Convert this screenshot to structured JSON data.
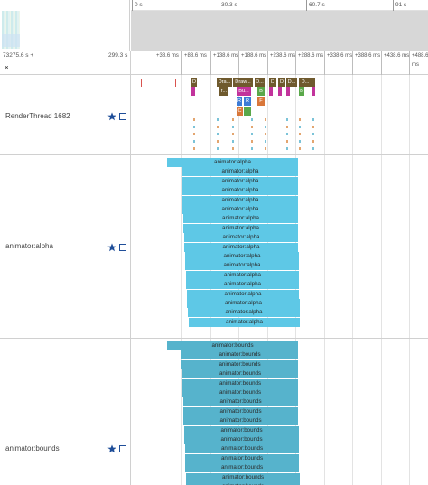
{
  "overview": {
    "ticks": [
      "0 s",
      "30.3 s",
      "60.7 s",
      "91 s"
    ]
  },
  "ruler": {
    "offset": "73275.6 s +",
    "span": "299.3 s",
    "ticks": [
      "+38.6 ms",
      "+88.6 ms",
      "+138.6 ms",
      "+188.6 ms",
      "+238.6 ms",
      "+288.6 ms",
      "+338.6 ms",
      "+388.6 ms",
      "+438.6 ms",
      "+488.6 ms"
    ]
  },
  "tracks": {
    "render": {
      "name": "RenderThread 1682",
      "slices_top": [
        "D",
        "Dra...",
        "Draw...",
        "D...",
        "D",
        "D",
        "D...",
        "D..."
      ],
      "slices_mid": [
        "f...",
        "Bu...",
        "B",
        "B"
      ],
      "slices_low": [
        "R",
        "R"
      ],
      "slices_c": [
        "C",
        "F"
      ]
    },
    "alpha": {
      "name": "animator:alpha",
      "slices": [
        "animator:alpha",
        "animator:alpha",
        "animator:alpha",
        "animator:alpha",
        "animator:alpha",
        "animator:alpha",
        "animator:alpha",
        "animator:alpha",
        "animator:alpha",
        "animator:alpha",
        "animator:alpha",
        "animator:alpha",
        "animator:alpha",
        "animator:alpha",
        "animator:alpha",
        "animator:alpha",
        "animator:alpha",
        "animator:alpha"
      ]
    },
    "bounds": {
      "name": "animator:bounds",
      "slices": [
        "animator:bounds",
        "animator:bounds",
        "animator:bounds",
        "animator:bounds",
        "animator:bounds",
        "animator:bounds",
        "animator:bounds",
        "animator:bounds",
        "animator:bounds",
        "animator:bounds",
        "animator:bounds",
        "animator:bounds",
        "animator:bounds",
        "animator:bounds",
        "animator:bounds",
        "animator:bounds"
      ]
    }
  },
  "colors": {
    "alpha": "#5ec8e6",
    "bounds": "#56b3cc",
    "render_brown": "#6f5a2e",
    "render_magenta": "#c2339c",
    "render_green": "#5aa84a",
    "render_blue": "#3d7bd6",
    "render_orange": "#d9773a",
    "pin_blue": "#1f4e99"
  }
}
